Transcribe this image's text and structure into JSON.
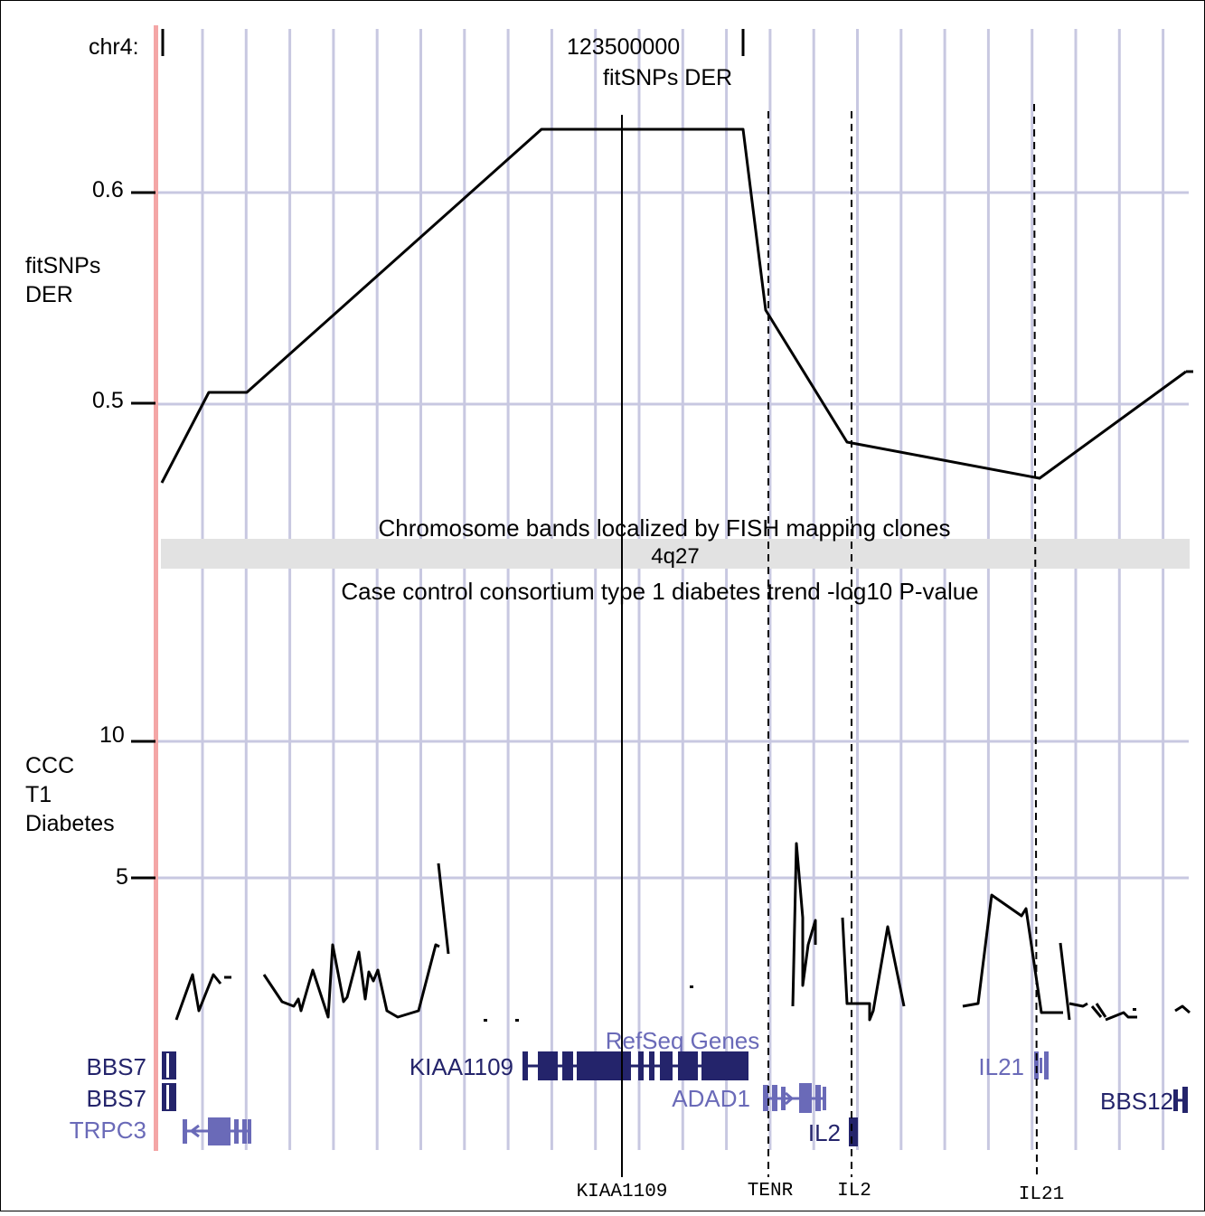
{
  "header": {
    "chrom_label": "chr4:",
    "position_label": "123500000",
    "track_title": "fitSNPs DER"
  },
  "der_track": {
    "label_lines": [
      "fitSNPs",
      "DER"
    ],
    "tick_06": "0.6",
    "tick_05": "0.5"
  },
  "band_track": {
    "title": "Chromosome bands localized by FISH mapping clones",
    "band_name": "4q27"
  },
  "t1d_track": {
    "title": "Case control consortium type 1 diabetes trend -log10 P-value",
    "label_lines": [
      "CCC",
      "T1",
      "Diabetes"
    ],
    "tick_10": "10",
    "tick_5": "5"
  },
  "refseq_track": {
    "title": "RefSeq Genes",
    "genes": {
      "bbs7_a": "BBS7",
      "bbs7_b": "BBS7",
      "trpc3": "TRPC3",
      "kiaa1109": "KIAA1109",
      "adad1": "ADAD1",
      "il2": "IL2",
      "il21": "IL21",
      "bbs12": "BBS12"
    }
  },
  "markers": {
    "kiaa1109": "KIAA1109",
    "tenr": "TENR",
    "il2": "IL2",
    "il21": "IL21"
  },
  "colors": {
    "grid": "#c8c8e1",
    "left_bar": "#f4a6a6",
    "band_fill": "#e2e2e2",
    "gene_dark": "#24246b",
    "gene_light": "#6a6ab8",
    "line": "#000000"
  }
}
